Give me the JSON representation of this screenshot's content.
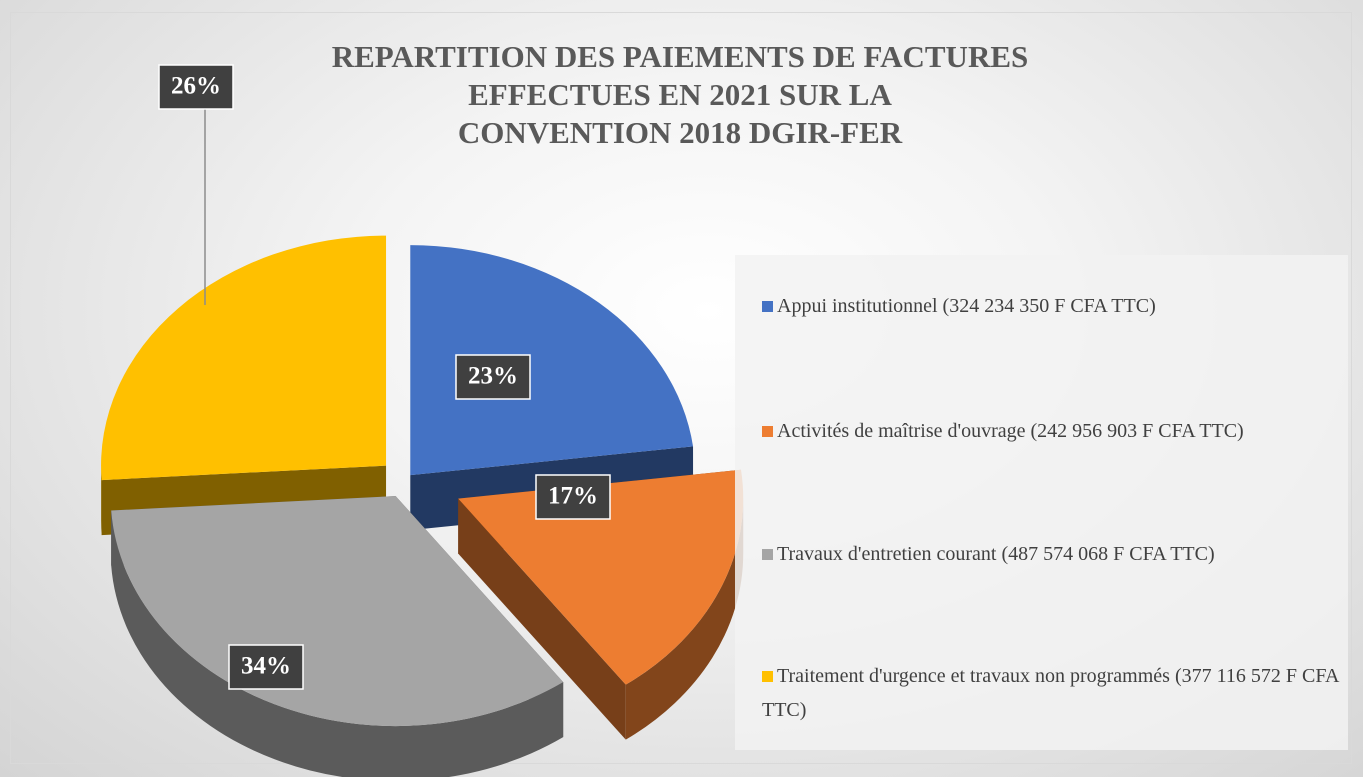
{
  "chart_data": {
    "type": "pie",
    "title": "REPARTITION DES PAIEMENTS DE FACTURES\nEFFECTUES EN 2021 SUR LA\nCONVENTION 2018 DGIR-FER",
    "categories": [
      "Appui institutionnel (324 234 350 F CFA TTC)",
      "Activités de maîtrise d'ouvrage (242 956 903 F CFA TTC)",
      "Travaux d'entretien courant (487 574 068 F CFA TTC)",
      "Traitement d'urgence et travaux non programmés (377 116 572 F CFA TTC)"
    ],
    "values": [
      23,
      17,
      34,
      26
    ],
    "value_labels": [
      "23%",
      "17%",
      "34%",
      "26%"
    ],
    "colors": [
      "#4472c4",
      "#ed7d31",
      "#a5a5a5",
      "#ffc000"
    ],
    "legend": "right"
  }
}
